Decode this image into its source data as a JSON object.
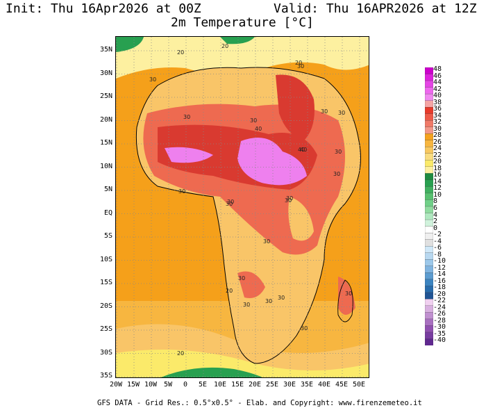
{
  "header": {
    "init": "Init: Thu 16Apr2026 at 00Z",
    "valid": "Valid: Thu 16APR2026 at 12Z",
    "variable": "2m Temperature [°C]"
  },
  "map": {
    "lat_labels": [
      "35N",
      "30N",
      "25N",
      "20N",
      "15N",
      "10N",
      "5N",
      "EQ",
      "5S",
      "10S",
      "15S",
      "20S",
      "25S",
      "30S",
      "35S"
    ],
    "lon_labels": [
      "20W",
      "15W",
      "10W",
      "5W",
      "0",
      "5E",
      "10E",
      "15E",
      "20E",
      "25E",
      "30E",
      "35E",
      "40E",
      "45E",
      "50E"
    ],
    "contour_labels": [
      {
        "t": "20"
      },
      {
        "t": "20"
      },
      {
        "t": "20"
      },
      {
        "t": "30"
      },
      {
        "t": "30"
      },
      {
        "t": "30"
      },
      {
        "t": "30"
      },
      {
        "t": "30"
      },
      {
        "t": "40"
      },
      {
        "t": "40"
      },
      {
        "t": "30"
      },
      {
        "t": "40"
      },
      {
        "t": "30"
      },
      {
        "t": "30"
      },
      {
        "t": "30"
      },
      {
        "t": "30"
      },
      {
        "t": "30"
      },
      {
        "t": "30"
      },
      {
        "t": "30"
      },
      {
        "t": "30"
      },
      {
        "t": "30"
      },
      {
        "t": "30"
      },
      {
        "t": "20"
      },
      {
        "t": "30"
      },
      {
        "t": "30"
      },
      {
        "t": "30"
      },
      {
        "t": "20"
      },
      {
        "t": "30"
      }
    ],
    "colors": {
      "ocean": "#f5a01a",
      "warm": "#f9c568",
      "hot": "#ee6a50",
      "very_hot": "#d93a30",
      "extreme": "#ee80ee",
      "green": "#28a050",
      "pale": "#fff5a0"
    }
  },
  "colorbar": {
    "labels": [
      "48",
      "46",
      "44",
      "42",
      "40",
      "38",
      "36",
      "34",
      "32",
      "30",
      "28",
      "26",
      "24",
      "22",
      "20",
      "18",
      "16",
      "14",
      "12",
      "10",
      "8",
      "6",
      "4",
      "2",
      "0",
      "-2",
      "-4",
      "-6",
      "-8",
      "-10",
      "-12",
      "-14",
      "-16",
      "-18",
      "-20",
      "-22",
      "-24",
      "-26",
      "-28",
      "-30",
      "-35",
      "-40"
    ],
    "colors": [
      "#cc00cc",
      "#dd22dd",
      "#e544e5",
      "#ee66ee",
      "#f088f0",
      "#f5a5a5",
      "#e83a2a",
      "#ee5a48",
      "#f07a68",
      "#f29888",
      "#f5a21e",
      "#f7b640",
      "#f8c860",
      "#f9dc80",
      "#fbea6a",
      "#fdf0a0",
      "#1e8a40",
      "#28a050",
      "#40b060",
      "#58c070",
      "#70d088",
      "#90dca0",
      "#b0e8c0",
      "#d0f2dc",
      "#ffffff",
      "#f0f0f0",
      "#e0e0e0",
      "#d0e8f8",
      "#b8d8f0",
      "#9cc8ea",
      "#80b4e0",
      "#5c9cd0",
      "#3c84c0",
      "#286cac",
      "#205494",
      "#f0d0f0",
      "#d8b0e0",
      "#c090d0",
      "#a870c0",
      "#9050b0",
      "#783ca0",
      "#602890"
    ]
  },
  "footer": "GFS DATA - Grid Res.: 0.5°x0.5° - Elab. and Copyright: www.firenzemeteo.it"
}
